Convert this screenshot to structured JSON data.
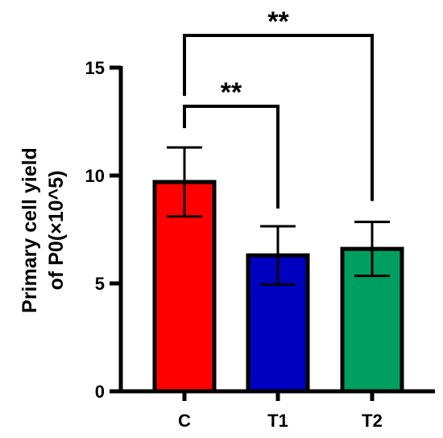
{
  "chart_data": {
    "type": "bar",
    "title": "",
    "xlabel": "",
    "ylabel_lines": [
      "Primary cell yield",
      "of P0(×10^5)"
    ],
    "ylim": [
      0,
      15
    ],
    "yticks": [
      0,
      5,
      10,
      15
    ],
    "categories": [
      "C",
      "T1",
      "T2"
    ],
    "values": [
      9.7,
      6.3,
      6.6
    ],
    "errors": [
      1.6,
      1.35,
      1.25
    ],
    "colors": [
      "#ff0000",
      "#0000c0",
      "#009e60"
    ],
    "grid": false,
    "legend": "none",
    "significance": [
      {
        "from": "C",
        "to": "T1",
        "label": "**"
      },
      {
        "from": "C",
        "to": "T2",
        "label": "**"
      }
    ]
  }
}
